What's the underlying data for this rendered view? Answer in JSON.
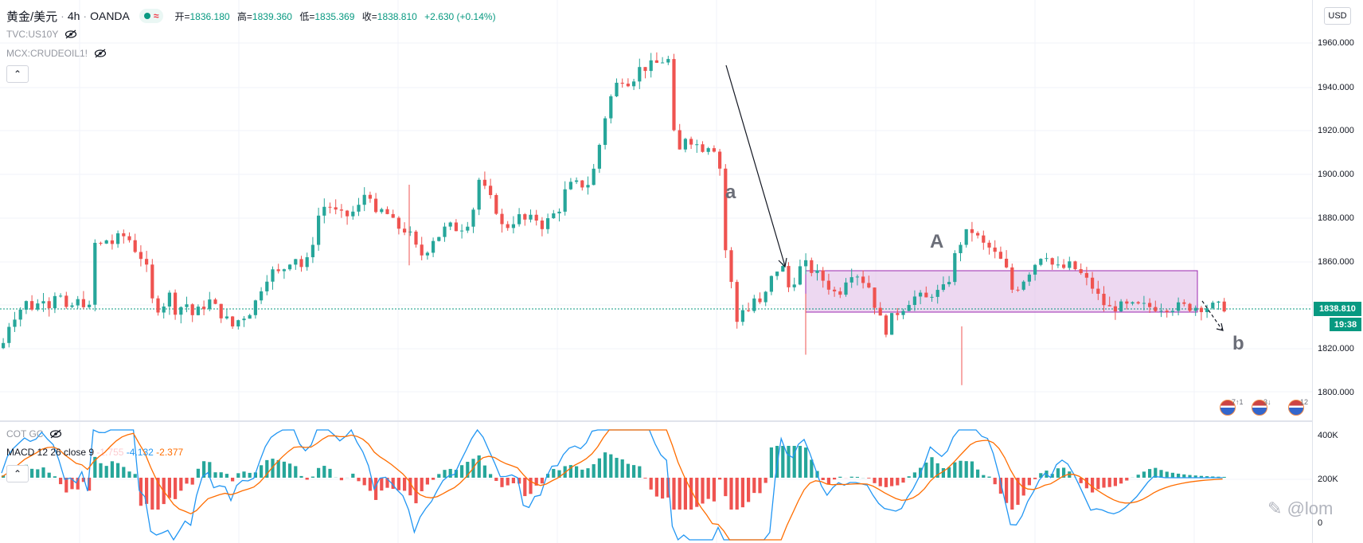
{
  "header": {
    "symbol": "黄金/美元",
    "interval": "4h",
    "exchange": "OANDA",
    "ohlc": {
      "open_label": "开=",
      "open": "1836.180",
      "high_label": "高=",
      "high": "1839.360",
      "low_label": "低=",
      "low": "1835.369",
      "close_label": "收=",
      "close": "1838.810",
      "change": "+2.630 (+0.14%)"
    }
  },
  "indicators": {
    "tvc": "TVC:US10Y",
    "mcx": "MCX:CRUDEOIL1!",
    "cot": "COT GC",
    "macd_label": "MACD 12 26 close 9",
    "macd_hist": "-1.755",
    "macd_value": "-4.132",
    "macd_signal": "-2.377"
  },
  "axis": {
    "currency": "USD",
    "price_labels": [
      "1960.000",
      "1940.000",
      "1920.000",
      "1900.000",
      "1880.000",
      "1860.000",
      "1820.000",
      "1800.000"
    ],
    "last_price": "1838.810",
    "countdown": "19:38",
    "macd_labels": [
      "400K",
      "200K",
      "0"
    ]
  },
  "events": [
    {
      "icon": "us-flag-icon",
      "count": "7↑1"
    },
    {
      "icon": "us-flag-icon",
      "count": "3↓"
    },
    {
      "icon": "us-flag-icon",
      "count": "12"
    }
  ],
  "annotations": {
    "a": "a",
    "A": "A",
    "b": "b"
  },
  "watermark": "@lom",
  "colors": {
    "up": "#26a69a",
    "down": "#ef5350",
    "macd": "#2196f3",
    "signal": "#ff6d00",
    "zone": "#e1bee7",
    "zone_border": "#9c27b0"
  },
  "chart_data": {
    "type": "candlestick",
    "ylim": [
      1795,
      1965
    ],
    "last_price": 1838.81,
    "points": [
      [
        0,
        1820
      ],
      [
        10,
        1832
      ],
      [
        20,
        1837
      ],
      [
        30,
        1840
      ],
      [
        35,
        1845
      ],
      [
        40,
        1835
      ],
      [
        50,
        1845
      ],
      [
        60,
        1840
      ],
      [
        70,
        1848
      ],
      [
        80,
        1836
      ],
      [
        90,
        1840
      ],
      [
        100,
        1842
      ],
      [
        110,
        1838
      ],
      [
        115,
        1870
      ],
      [
        120,
        1865
      ],
      [
        130,
        1870
      ],
      [
        140,
        1868
      ],
      [
        150,
        1872
      ],
      [
        160,
        1870
      ],
      [
        170,
        1864
      ],
      [
        180,
        1860
      ],
      [
        190,
        1840
      ],
      [
        200,
        1838
      ],
      [
        210,
        1845
      ],
      [
        220,
        1836
      ],
      [
        230,
        1842
      ],
      [
        240,
        1835
      ],
      [
        250,
        1838
      ],
      [
        260,
        1842
      ],
      [
        270,
        1838
      ],
      [
        280,
        1834
      ],
      [
        290,
        1830
      ],
      [
        300,
        1834
      ],
      [
        310,
        1836
      ],
      [
        320,
        1842
      ],
      [
        330,
        1852
      ],
      [
        340,
        1855
      ],
      [
        350,
        1854
      ],
      [
        360,
        1860
      ],
      [
        370,
        1862
      ],
      [
        380,
        1855
      ],
      [
        390,
        1868
      ],
      [
        400,
        1884
      ],
      [
        410,
        1886
      ],
      [
        420,
        1882
      ],
      [
        430,
        1880
      ],
      [
        440,
        1882
      ],
      [
        450,
        1885
      ],
      [
        460,
        1895
      ],
      [
        470,
        1880
      ],
      [
        480,
        1884
      ],
      [
        490,
        1878
      ],
      [
        500,
        1875
      ],
      [
        510,
        1874
      ],
      [
        520,
        1866
      ],
      [
        530,
        1862
      ],
      [
        540,
        1870
      ],
      [
        550,
        1872
      ],
      [
        560,
        1876
      ],
      [
        570,
        1875
      ],
      [
        580,
        1876
      ],
      [
        590,
        1880
      ],
      [
        600,
        1898
      ],
      [
        610,
        1890
      ],
      [
        620,
        1885
      ],
      [
        630,
        1874
      ],
      [
        640,
        1878
      ],
      [
        650,
        1880
      ],
      [
        660,
        1878
      ],
      [
        670,
        1880
      ],
      [
        680,
        1876
      ],
      [
        690,
        1880
      ],
      [
        700,
        1884
      ],
      [
        710,
        1894
      ],
      [
        720,
        1895
      ],
      [
        730,
        1895
      ],
      [
        740,
        1896
      ],
      [
        750,
        1912
      ],
      [
        760,
        1930
      ],
      [
        770,
        1940
      ],
      [
        780,
        1944
      ],
      [
        790,
        1942
      ],
      [
        800,
        1948
      ],
      [
        810,
        1949
      ],
      [
        820,
        1950
      ],
      [
        830,
        1952
      ],
      [
        836,
        1958
      ],
      [
        840,
        1938
      ],
      [
        845,
        1915
      ],
      [
        850,
        1908
      ],
      [
        855,
        1915
      ],
      [
        860,
        1918
      ],
      [
        870,
        1914
      ],
      [
        880,
        1912
      ],
      [
        890,
        1914
      ],
      [
        900,
        1910
      ],
      [
        905,
        1892
      ],
      [
        910,
        1860
      ],
      [
        915,
        1854
      ],
      [
        920,
        1838
      ],
      [
        925,
        1830
      ],
      [
        930,
        1838
      ],
      [
        935,
        1842
      ],
      [
        940,
        1834
      ],
      [
        945,
        1843
      ],
      [
        950,
        1838
      ],
      [
        960,
        1845
      ],
      [
        970,
        1855
      ],
      [
        980,
        1858
      ],
      [
        990,
        1846
      ],
      [
        1000,
        1856
      ],
      [
        1010,
        1858
      ],
      [
        1020,
        1855
      ],
      [
        1030,
        1852
      ],
      [
        1040,
        1848
      ],
      [
        1050,
        1844
      ],
      [
        1060,
        1852
      ],
      [
        1070,
        1856
      ],
      [
        1080,
        1852
      ],
      [
        1090,
        1848
      ],
      [
        1100,
        1836
      ],
      [
        1110,
        1828
      ],
      [
        1120,
        1835
      ],
      [
        1130,
        1838
      ],
      [
        1140,
        1842
      ],
      [
        1150,
        1844
      ],
      [
        1160,
        1842
      ],
      [
        1170,
        1846
      ],
      [
        1180,
        1845
      ],
      [
        1190,
        1852
      ],
      [
        1200,
        1866
      ],
      [
        1210,
        1872
      ],
      [
        1220,
        1874
      ],
      [
        1230,
        1868
      ],
      [
        1240,
        1866
      ],
      [
        1250,
        1862
      ],
      [
        1260,
        1858
      ],
      [
        1270,
        1846
      ],
      [
        1280,
        1850
      ],
      [
        1290,
        1855
      ],
      [
        1300,
        1860
      ],
      [
        1310,
        1865
      ],
      [
        1320,
        1858
      ],
      [
        1330,
        1856
      ],
      [
        1340,
        1858
      ],
      [
        1350,
        1856
      ],
      [
        1360,
        1852
      ],
      [
        1370,
        1848
      ],
      [
        1380,
        1842
      ],
      [
        1390,
        1838
      ],
      [
        1400,
        1839
      ]
    ]
  }
}
